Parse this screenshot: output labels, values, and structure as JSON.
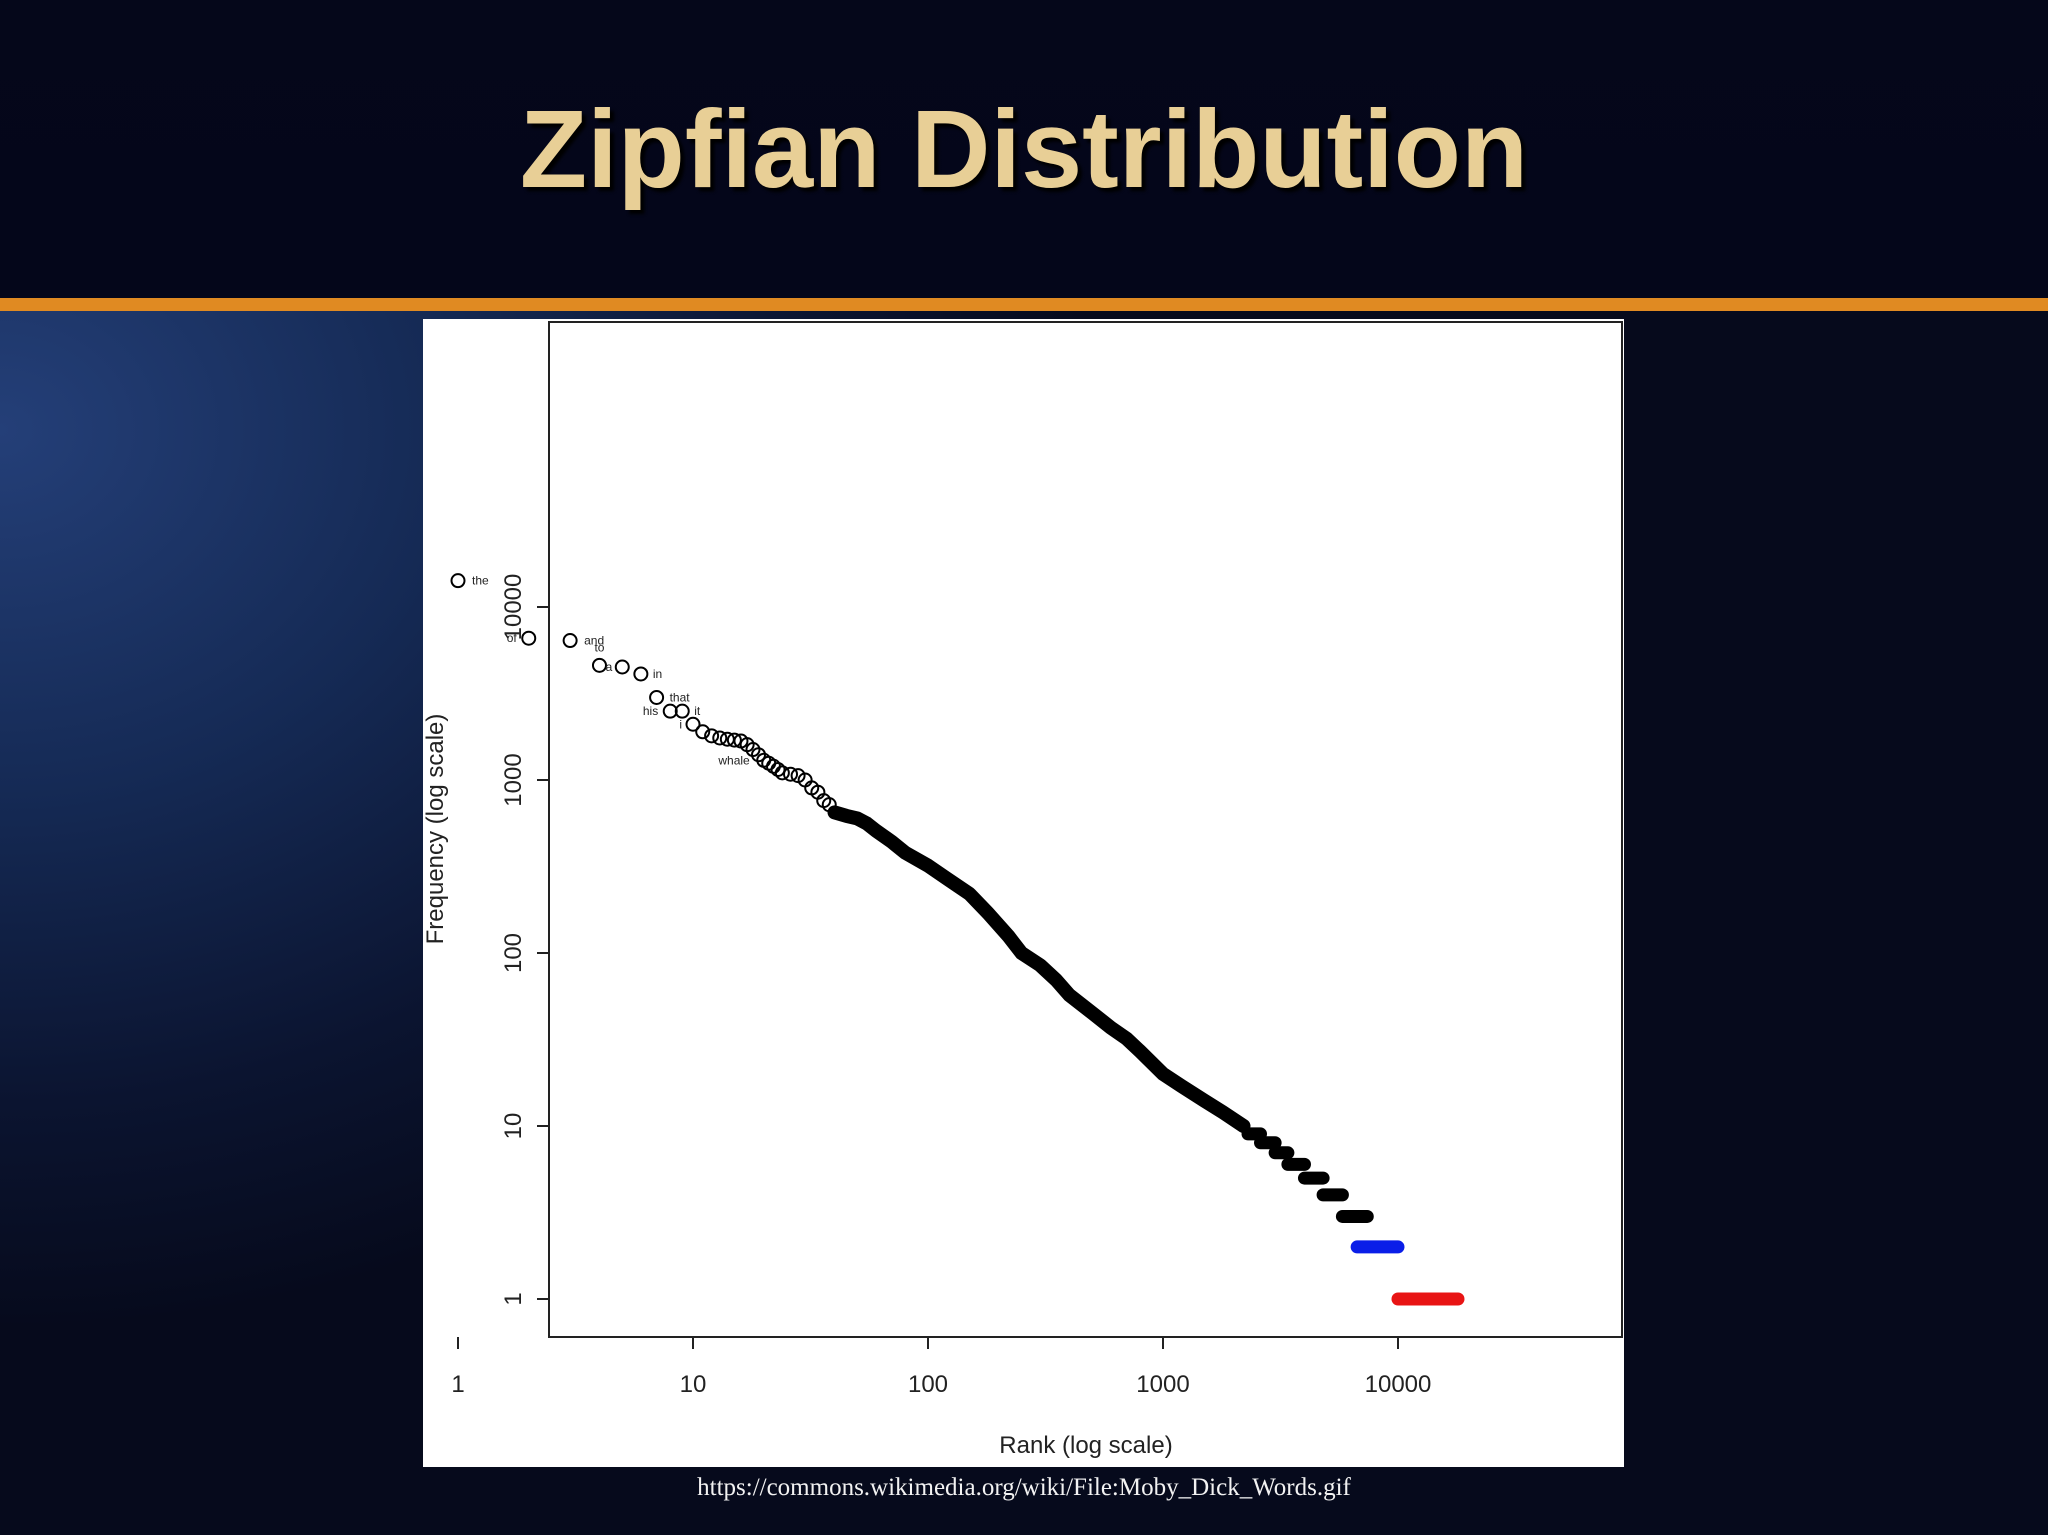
{
  "slide": {
    "title": "Zipfian Distribution",
    "source": "https://commons.wikimedia.org/wiki/File:Moby_Dick_Words.gif"
  },
  "colors": {
    "title": "#e8cf96",
    "accent_rule": "#e08a22",
    "points": "#000000",
    "freq2": "#0a1ee8",
    "freq1": "#e81414"
  },
  "chart_data": {
    "type": "scatter",
    "xscale": "log",
    "yscale": "log",
    "xlim": [
      0.84,
      26000
    ],
    "ylim": [
      0.84,
      18000
    ],
    "xlabel": "Rank (log scale)",
    "ylabel": "Frequency (log scale)",
    "xticks": [
      1,
      10,
      100,
      1000,
      10000
    ],
    "xtick_labels": [
      "1",
      "10",
      "100",
      "1000",
      "10000"
    ],
    "yticks": [
      1,
      10,
      100,
      1000,
      10000
    ],
    "ytick_labels": [
      "1",
      "10",
      "100",
      "1000",
      "10000"
    ],
    "grid": false,
    "labeled_points": [
      {
        "word": "the",
        "rank": 1,
        "freq": 14200
      },
      {
        "word": "of",
        "rank": 2,
        "freq": 6600
      },
      {
        "word": "and",
        "rank": 3,
        "freq": 6400
      },
      {
        "word": "to",
        "rank": 4,
        "freq": 4600
      },
      {
        "word": "a",
        "rank": 5,
        "freq": 4500
      },
      {
        "word": "in",
        "rank": 6,
        "freq": 4100
      },
      {
        "word": "that",
        "rank": 7,
        "freq": 3000
      },
      {
        "word": "his",
        "rank": 8,
        "freq": 2500
      },
      {
        "word": "it",
        "rank": 9,
        "freq": 2500
      },
      {
        "word": "i",
        "rank": 10,
        "freq": 2100
      },
      {
        "word": "whale",
        "rank": 20,
        "freq": 1300
      }
    ],
    "unlabeled_points": [
      {
        "rank": 11,
        "freq": 1900
      },
      {
        "rank": 12,
        "freq": 1800
      },
      {
        "rank": 13,
        "freq": 1750
      },
      {
        "rank": 14,
        "freq": 1720
      },
      {
        "rank": 15,
        "freq": 1700
      },
      {
        "rank": 16,
        "freq": 1680
      },
      {
        "rank": 17,
        "freq": 1600
      },
      {
        "rank": 18,
        "freq": 1500
      },
      {
        "rank": 19,
        "freq": 1400
      },
      {
        "rank": 21,
        "freq": 1250
      },
      {
        "rank": 22,
        "freq": 1200
      },
      {
        "rank": 23,
        "freq": 1150
      },
      {
        "rank": 24,
        "freq": 1100
      },
      {
        "rank": 26,
        "freq": 1080
      },
      {
        "rank": 28,
        "freq": 1060
      },
      {
        "rank": 30,
        "freq": 1000
      },
      {
        "rank": 32,
        "freq": 900
      },
      {
        "rank": 34,
        "freq": 850
      },
      {
        "rank": 36,
        "freq": 760
      },
      {
        "rank": 38,
        "freq": 720
      }
    ],
    "series": [
      {
        "color": "#000000",
        "points": [
          [
            40,
            650
          ],
          [
            45,
            620
          ],
          [
            50,
            600
          ],
          [
            55,
            560
          ],
          [
            60,
            510
          ],
          [
            70,
            440
          ],
          [
            80,
            380
          ],
          [
            100,
            320
          ],
          [
            120,
            270
          ],
          [
            150,
            220
          ],
          [
            180,
            170
          ],
          [
            220,
            125
          ],
          [
            250,
            100
          ],
          [
            300,
            85
          ],
          [
            350,
            70
          ],
          [
            400,
            57
          ],
          [
            500,
            45
          ],
          [
            600,
            37
          ],
          [
            700,
            32
          ],
          [
            800,
            27
          ],
          [
            1000,
            20
          ],
          [
            1200,
            17
          ],
          [
            1500,
            14
          ],
          [
            1800,
            12
          ],
          [
            2200,
            10
          ]
        ]
      },
      {
        "color": "#000000",
        "steps": [
          {
            "freq": 9,
            "rank_from": 2300,
            "rank_to": 2600
          },
          {
            "freq": 8,
            "rank_from": 2600,
            "rank_to": 3000
          },
          {
            "freq": 7,
            "rank_from": 3000,
            "rank_to": 3400
          },
          {
            "freq": 6,
            "rank_from": 3400,
            "rank_to": 4000
          },
          {
            "freq": 5,
            "rank_from": 4000,
            "rank_to": 4800
          },
          {
            "freq": 4,
            "rank_from": 4800,
            "rank_to": 5800
          },
          {
            "freq": 3,
            "rank_from": 5800,
            "rank_to": 7400
          }
        ]
      },
      {
        "color": "#0a1ee8",
        "steps": [
          {
            "freq": 2,
            "rank_from": 6700,
            "rank_to": 10000
          }
        ]
      },
      {
        "color": "#e81414",
        "steps": [
          {
            "freq": 1,
            "rank_from": 10000,
            "rank_to": 18000
          }
        ]
      }
    ]
  }
}
